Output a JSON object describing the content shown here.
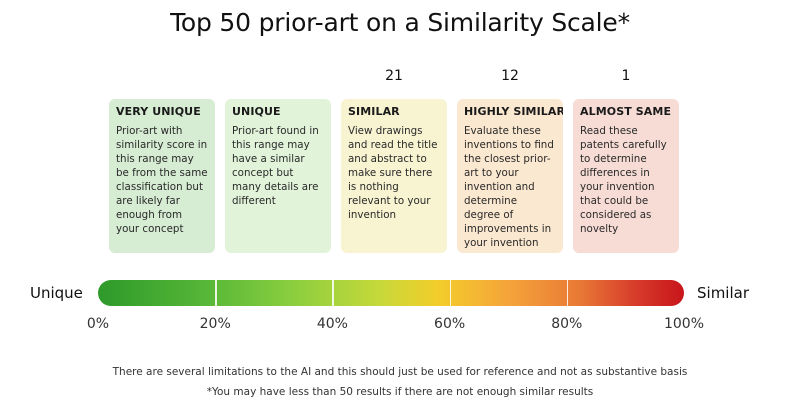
{
  "chart_data": {
    "type": "table",
    "title": "Top 50 prior-art on a Similarity Scale*",
    "scale": {
      "left_label": "Unique",
      "right_label": "Similar",
      "ticks": [
        "0%",
        "20%",
        "40%",
        "60%",
        "80%",
        "100%"
      ],
      "tick_values": [
        0,
        20,
        40,
        60,
        80,
        100
      ],
      "range": [
        0,
        100
      ]
    },
    "categories": [
      {
        "label": "VERY UNIQUE",
        "count": "",
        "range": [
          0,
          20
        ],
        "color": "#d6ecd3",
        "description": "Prior-art with similarity score in this range may be from the same classification but are likely far enough from your concept"
      },
      {
        "label": "UNIQUE",
        "count": "",
        "range": [
          20,
          40
        ],
        "color": "#e1f4da",
        "description": "Prior-art found in this range may have a similar concept but many details are different"
      },
      {
        "label": "SIMILAR",
        "count": "21",
        "range": [
          40,
          60
        ],
        "color": "#f8f4d2",
        "description": "View drawings and read the title and abstract to make sure there is nothing relevant to your invention"
      },
      {
        "label": "HIGHLY SIMILAR",
        "count": "12",
        "range": [
          60,
          80
        ],
        "color": "#fbe8d0",
        "description": "Evaluate these inventions to find the closest prior-art to your invention and determine degree of improvements in your invention"
      },
      {
        "label": "ALMOST SAME",
        "count": "1",
        "range": [
          80,
          100
        ],
        "color": "#f7dcd5",
        "description": "Read these patents carefully to determine differences in your invention that could be considered as novelty"
      }
    ]
  },
  "footnotes": {
    "limitation": "There are several limitations to the AI and this should just be used for reference and not as substantive basis",
    "results": "*You may have less than 50 results if there are not enough similar results"
  }
}
